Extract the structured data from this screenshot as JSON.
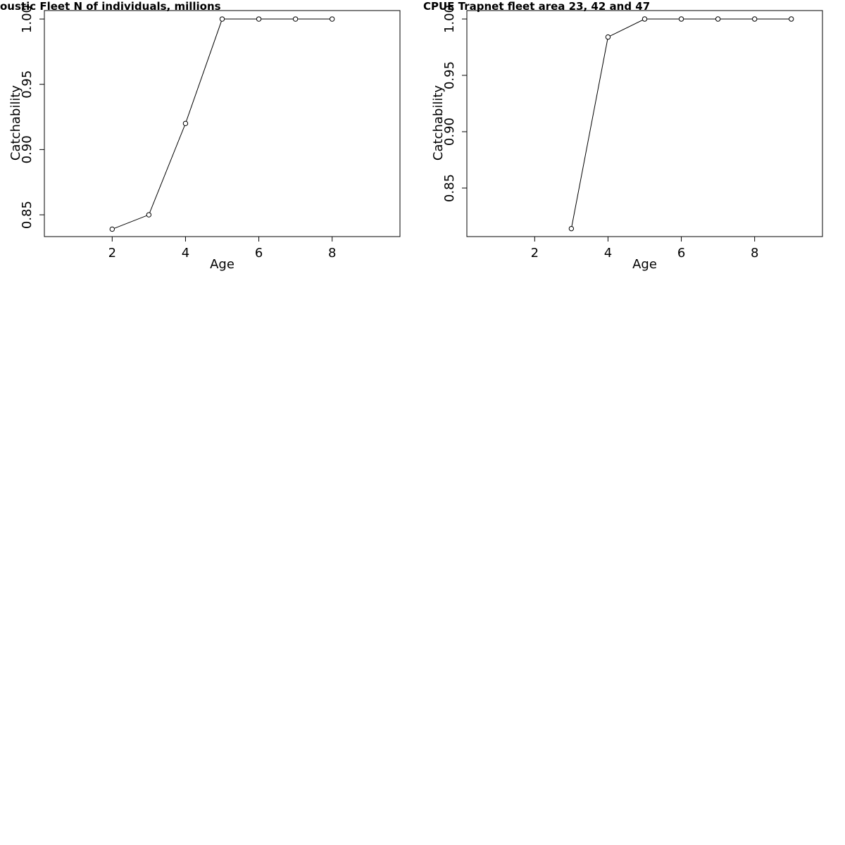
{
  "chart_data": [
    {
      "type": "line",
      "title": "oustic Fleet   N of individuals, millions",
      "xlabel": "Age",
      "ylabel": "Catchability",
      "x": [
        2,
        3,
        4,
        5,
        6,
        7,
        8
      ],
      "values": [
        0.839,
        0.85,
        0.92,
        1,
        1,
        1,
        1
      ],
      "color": "#000000",
      "xlim": [
        0.15,
        9.85
      ],
      "ylim": [
        0.8333,
        1.0065
      ],
      "xticks": [
        2,
        4,
        6,
        8
      ],
      "yticks": [
        0.85,
        {
          "value": 0.9,
          "label": "0.90"
        },
        0.95,
        {
          "value": 1,
          "label": "1.00"
        }
      ]
    },
    {
      "type": "line",
      "title": "CPUE Trapnet fleet area 23, 42 and 47",
      "xlabel": "Age",
      "ylabel": "Catchability",
      "x": [
        3,
        4,
        5,
        6,
        7,
        8,
        9
      ],
      "values": [
        0.814,
        0.984,
        1,
        1,
        1,
        1,
        1
      ],
      "color": "#000000",
      "xlim": [
        0.15,
        9.85
      ],
      "ylim": [
        0.8069,
        1.0075
      ],
      "xticks": [
        2,
        4,
        6,
        8
      ],
      "yticks": [
        0.85,
        {
          "value": 0.9,
          "label": "0.90"
        },
        0.95,
        {
          "value": 1,
          "label": "1.00"
        }
      ]
    }
  ]
}
